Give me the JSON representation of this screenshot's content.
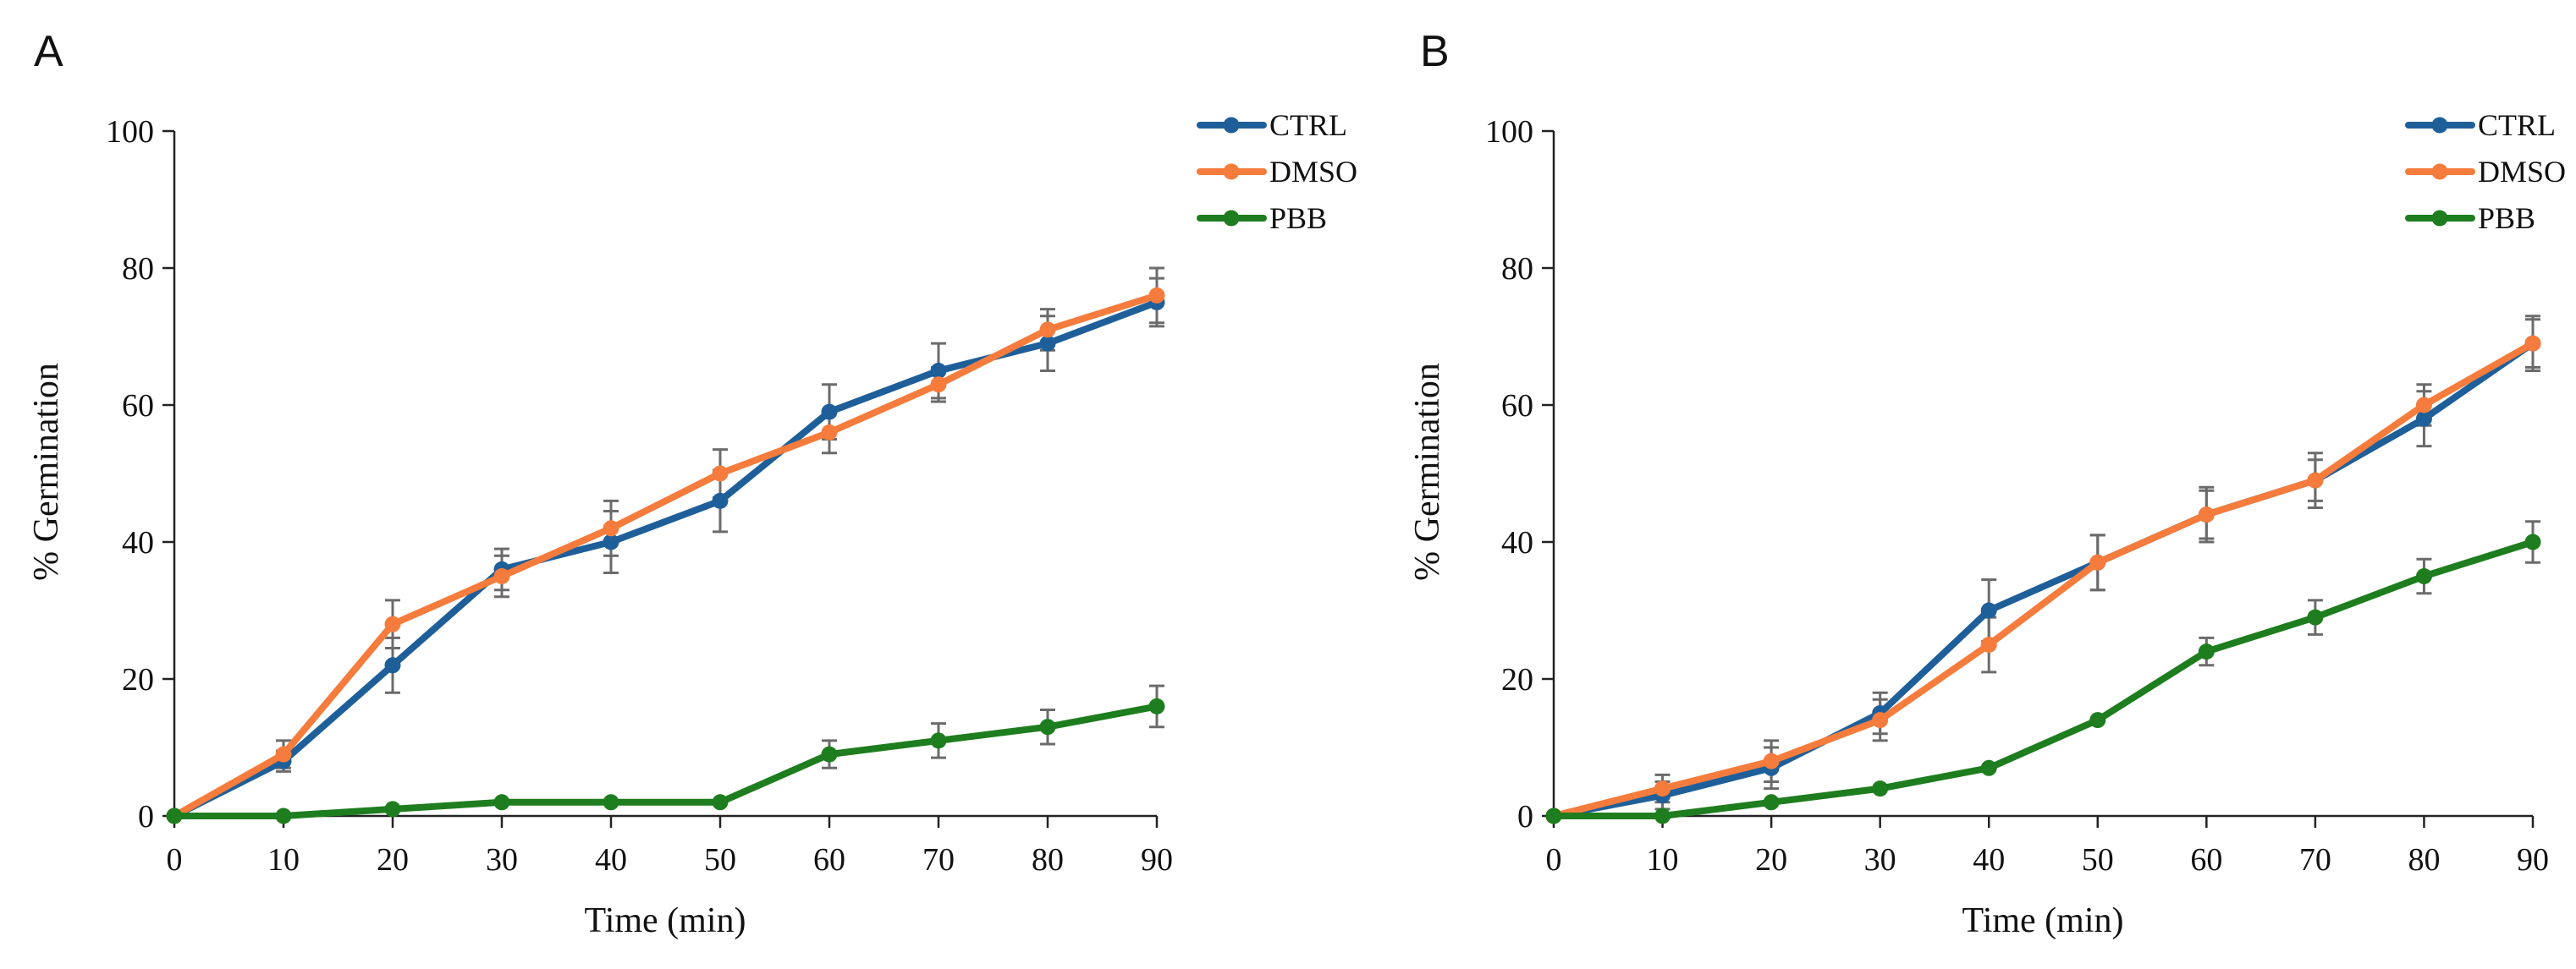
{
  "chart_data": [
    {
      "type": "line",
      "panel": "A",
      "xlabel": "Time (min)",
      "ylabel": "% Germination",
      "x": [
        0,
        10,
        20,
        30,
        40,
        50,
        60,
        70,
        80,
        90
      ],
      "xlim": [
        0,
        90
      ],
      "ylim": [
        0,
        100
      ],
      "xticks": [
        "0",
        "10",
        "20",
        "30",
        "40",
        "50",
        "60",
        "70",
        "80",
        "90"
      ],
      "yticks": [
        "0",
        "20",
        "40",
        "60",
        "80",
        "100"
      ],
      "legend_position": "top-right",
      "series": [
        {
          "name": "CTRL",
          "color": "#1f5f99",
          "values": [
            0,
            8,
            22,
            36,
            40,
            46,
            59,
            65,
            69,
            75
          ],
          "errors": [
            0,
            1.5,
            4,
            3,
            4.5,
            4.5,
            4,
            4,
            4,
            3.5
          ]
        },
        {
          "name": "DMSO",
          "color": "#f57c3c",
          "values": [
            0,
            9,
            28,
            35,
            42,
            50,
            56,
            63,
            71,
            76
          ],
          "errors": [
            0,
            2,
            3.5,
            3,
            4,
            3.5,
            3,
            2.5,
            3,
            4
          ]
        },
        {
          "name": "PBB",
          "color": "#1e7d1e",
          "values": [
            0,
            0,
            1,
            2,
            2,
            2,
            9,
            11,
            13,
            16
          ],
          "errors": [
            0,
            0,
            0,
            0,
            0,
            0,
            2,
            2.5,
            2.5,
            3
          ]
        }
      ]
    },
    {
      "type": "line",
      "panel": "B",
      "xlabel": "Time (min)",
      "ylabel": "% Germination",
      "x": [
        0,
        10,
        20,
        30,
        40,
        50,
        60,
        70,
        80,
        90
      ],
      "xlim": [
        0,
        90
      ],
      "ylim": [
        0,
        100
      ],
      "xticks": [
        "0",
        "10",
        "20",
        "30",
        "40",
        "50",
        "60",
        "70",
        "80",
        "90"
      ],
      "yticks": [
        "0",
        "20",
        "40",
        "60",
        "80",
        "100"
      ],
      "legend_position": "top-right",
      "series": [
        {
          "name": "CTRL",
          "color": "#1f5f99",
          "values": [
            0,
            3,
            7,
            15,
            30,
            37,
            44,
            49,
            58,
            69
          ],
          "errors": [
            0,
            2,
            3,
            3,
            4.5,
            4,
            4,
            4,
            4,
            4
          ]
        },
        {
          "name": "DMSO",
          "color": "#f57c3c",
          "values": [
            0,
            4,
            8,
            14,
            25,
            37,
            44,
            49,
            60,
            69
          ],
          "errors": [
            0,
            2,
            3,
            3,
            4,
            4,
            3.5,
            3,
            3,
            3.5
          ]
        },
        {
          "name": "PBB",
          "color": "#1e7d1e",
          "values": [
            0,
            0,
            2,
            4,
            7,
            14,
            24,
            29,
            35,
            40
          ],
          "errors": [
            0,
            0,
            0,
            0,
            0,
            0,
            2,
            2.5,
            2.5,
            3
          ]
        }
      ]
    }
  ]
}
